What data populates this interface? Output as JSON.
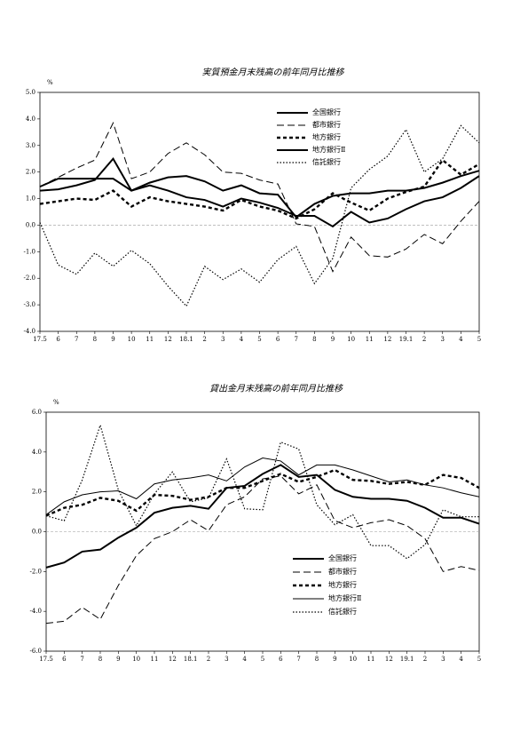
{
  "chart_data": [
    {
      "type": "line",
      "title": "実質預金月末残高の前年同月比推移",
      "y_unit": "%",
      "categories": [
        "17.5",
        "6",
        "7",
        "8",
        "9",
        "10",
        "11",
        "12",
        "18.1",
        "2",
        "3",
        "4",
        "5",
        "6",
        "7",
        "8",
        "9",
        "10",
        "11",
        "12",
        "19.1",
        "2",
        "3",
        "4",
        "5"
      ],
      "ylim": [
        -4,
        5
      ],
      "yticks": [
        {
          "value": 5,
          "label": "5.0"
        },
        {
          "value": 4,
          "label": "4.0"
        },
        {
          "value": 3,
          "label": "3.0"
        },
        {
          "value": 2,
          "label": "2.0"
        },
        {
          "value": 1,
          "label": "1.0"
        },
        {
          "value": 0,
          "label": "0.0"
        },
        {
          "value": -1,
          "label": "-1.0"
        },
        {
          "value": -2,
          "label": "-2.0"
        },
        {
          "value": -3,
          "label": "-3.0"
        },
        {
          "value": -4,
          "label": "-4.0"
        }
      ],
      "series": [
        {
          "name": "全国銀行",
          "color": "#000000",
          "style": "thick",
          "values": [
            1.45,
            1.75,
            1.75,
            1.75,
            1.75,
            1.3,
            1.6,
            1.8,
            1.85,
            1.65,
            1.3,
            1.5,
            1.2,
            1.15,
            0.3,
            0.8,
            1.1,
            1.2,
            1.2,
            1.3,
            1.3,
            1.4,
            1.6,
            1.85,
            2.05
          ]
        },
        {
          "name": "都市銀行",
          "color": "#000000",
          "style": "dash",
          "values": [
            1.45,
            1.8,
            2.15,
            2.45,
            3.85,
            1.75,
            2.0,
            2.7,
            3.1,
            2.65,
            2.0,
            1.95,
            1.7,
            1.55,
            0.05,
            -0.05,
            -1.75,
            -0.45,
            -1.15,
            -1.2,
            -0.9,
            -0.35,
            -0.7,
            0.15,
            0.9
          ]
        },
        {
          "name": "地方銀行",
          "color": "#000000",
          "style": "thickdash",
          "values": [
            0.8,
            0.9,
            1.0,
            0.95,
            1.3,
            0.7,
            1.05,
            0.9,
            0.8,
            0.7,
            0.55,
            0.95,
            0.7,
            0.55,
            0.25,
            0.6,
            1.2,
            0.85,
            0.55,
            1.0,
            1.25,
            1.45,
            2.45,
            1.9,
            2.3
          ]
        },
        {
          "name": "地方銀行Ⅱ",
          "color": "#000000",
          "style": "thick",
          "values": [
            1.3,
            1.35,
            1.5,
            1.7,
            2.5,
            1.3,
            1.5,
            1.3,
            1.05,
            0.95,
            0.7,
            1.0,
            0.85,
            0.65,
            0.35,
            0.35,
            -0.05,
            0.5,
            0.1,
            0.25,
            0.6,
            0.9,
            1.05,
            1.4,
            1.85
          ]
        },
        {
          "name": "信託銀行",
          "color": "#000000",
          "style": "dot",
          "values": [
            0.1,
            -1.5,
            -1.85,
            -1.05,
            -1.55,
            -0.95,
            -1.45,
            -2.3,
            -3.05,
            -1.55,
            -2.05,
            -1.65,
            -2.15,
            -1.3,
            -0.8,
            -2.2,
            -1.25,
            1.4,
            2.1,
            2.6,
            3.6,
            2.0,
            2.5,
            3.75,
            3.1
          ]
        }
      ]
    },
    {
      "type": "line",
      "title": "貸出金月末残高の前年同月比推移",
      "y_unit": "%",
      "categories": [
        "17.5",
        "6",
        "7",
        "8",
        "9",
        "10",
        "11",
        "12",
        "18.1",
        "2",
        "3",
        "4",
        "5",
        "6",
        "7",
        "8",
        "9",
        "10",
        "11",
        "12",
        "19.1",
        "2",
        "3",
        "4",
        "5"
      ],
      "ylim": [
        -6,
        6
      ],
      "yticks": [
        {
          "value": 6,
          "label": "6.0"
        },
        {
          "value": 4,
          "label": "4.0"
        },
        {
          "value": 2,
          "label": "2.0"
        },
        {
          "value": 0,
          "label": "0.0"
        },
        {
          "value": -2,
          "label": "-2.0"
        },
        {
          "value": -4,
          "label": "-4.0"
        },
        {
          "value": -6,
          "label": "-6.0"
        }
      ],
      "series": [
        {
          "name": "全国銀行",
          "color": "#000000",
          "style": "thick",
          "values": [
            -1.8,
            -1.55,
            -1.0,
            -0.9,
            -0.3,
            0.2,
            0.95,
            1.2,
            1.3,
            1.15,
            2.2,
            2.3,
            2.9,
            3.35,
            2.75,
            2.85,
            2.1,
            1.75,
            1.65,
            1.65,
            1.55,
            1.2,
            0.7,
            0.7,
            0.4
          ]
        },
        {
          "name": "都市銀行",
          "color": "#000000",
          "style": "dash",
          "values": [
            -4.6,
            -4.5,
            -3.8,
            -4.4,
            -2.7,
            -1.2,
            -0.35,
            0.0,
            0.6,
            0.05,
            1.35,
            1.75,
            2.65,
            2.8,
            1.9,
            2.35,
            0.55,
            0.2,
            0.45,
            0.6,
            0.3,
            -0.35,
            -2.0,
            -1.75,
            -1.95
          ]
        },
        {
          "name": "地方銀行",
          "color": "#000000",
          "style": "thickdash",
          "values": [
            0.8,
            1.2,
            1.35,
            1.7,
            1.55,
            1.05,
            1.85,
            1.8,
            1.6,
            1.75,
            2.2,
            2.2,
            2.55,
            2.9,
            2.5,
            2.75,
            3.1,
            2.6,
            2.55,
            2.4,
            2.5,
            2.35,
            2.85,
            2.7,
            2.2
          ]
        },
        {
          "name": "地方銀行Ⅱ",
          "color": "#000000",
          "style": "thin",
          "values": [
            0.85,
            1.5,
            1.85,
            2.0,
            2.05,
            1.65,
            2.4,
            2.6,
            2.7,
            2.85,
            2.55,
            3.25,
            3.7,
            3.55,
            2.85,
            3.35,
            3.35,
            3.1,
            2.8,
            2.5,
            2.6,
            2.35,
            2.2,
            1.95,
            1.75
          ]
        },
        {
          "name": "信託銀行",
          "color": "#000000",
          "style": "dot",
          "values": [
            0.8,
            0.55,
            2.6,
            5.35,
            2.1,
            0.3,
            1.9,
            3.0,
            1.5,
            1.7,
            3.65,
            1.15,
            1.1,
            4.5,
            4.15,
            1.35,
            0.35,
            0.85,
            -0.7,
            -0.7,
            -1.35,
            -0.65,
            1.1,
            0.75,
            0.75
          ]
        }
      ]
    }
  ]
}
